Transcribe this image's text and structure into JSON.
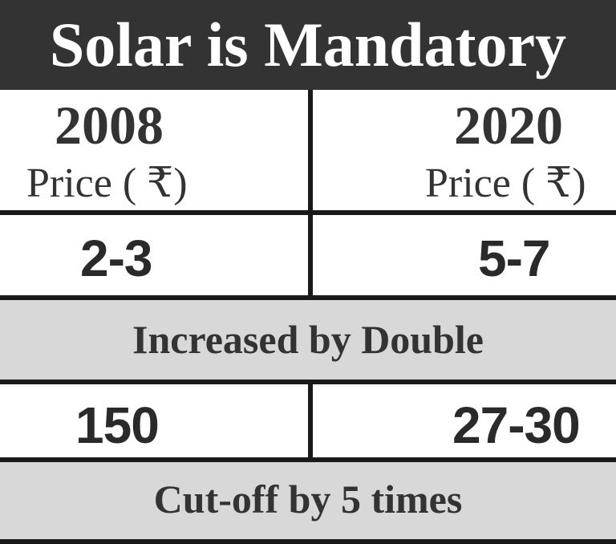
{
  "title": "Solar is Mandatory",
  "columns": [
    {
      "year": "2008",
      "price_label": "Price ( ₹)"
    },
    {
      "year": "2020",
      "price_label": "Price ( ₹)"
    }
  ],
  "price_row": {
    "left": "2-3",
    "right": "5-7"
  },
  "price_note": "Increased by Double",
  "second_row": {
    "left": "150",
    "right": "27-30"
  },
  "second_note": "Cut-off by 5 times",
  "colors": {
    "title_background": "#333333",
    "title_text": "#ffffff",
    "band_background": "#d8d8d8",
    "text": "#333333",
    "lines": "#1a1a1a"
  }
}
